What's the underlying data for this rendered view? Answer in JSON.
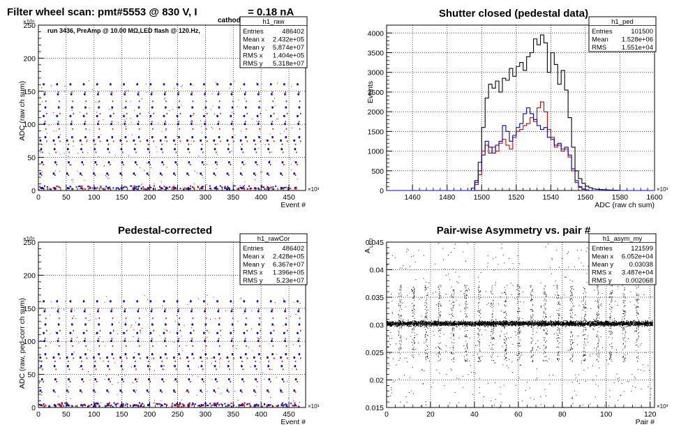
{
  "chart_data": [
    {
      "type": "scatter",
      "title": "Filter wheel scan: pmt#5553 @   830 V, I",
      "title_sub": "cathode",
      "title_suffix": "= 0.18 nA",
      "annotation": "run 3436, PreAmp @ 10.00 MΩ,LED flash @  120.Hz,",
      "xlabel": "Event #",
      "ylabel": "ADC (raw ch sum)",
      "x_exponent": "×10³",
      "y_exponent": "×10⁶",
      "xlim": [
        0,
        480
      ],
      "ylim": [
        0,
        250
      ],
      "xticks": [
        "0",
        "50",
        "100",
        "150",
        "200",
        "250",
        "300",
        "350",
        "400",
        "450"
      ],
      "yticks": [
        "0",
        "50",
        "100",
        "150",
        "200",
        "250"
      ],
      "stats": {
        "name": "h1_raw",
        "rows": [
          [
            "Entries",
            "486402"
          ],
          [
            "Mean x",
            "2.432e+05"
          ],
          [
            "Mean y",
            "5.874e+07"
          ],
          [
            "RMS x",
            "1.404e+05"
          ],
          [
            "RMS y",
            "5.318e+07"
          ]
        ]
      },
      "colors": {
        "series_a": "#0000cc",
        "series_b": "#cc0000"
      },
      "step_levels": [
        160,
        145,
        125,
        112,
        100,
        80,
        75,
        62,
        42,
        25,
        3
      ],
      "cycle_period": 24
    },
    {
      "type": "line",
      "title": "Shutter closed (pedestal data)",
      "xlabel": "ADC (raw ch sum)",
      "ylabel": "Events",
      "x_exponent": "×10³",
      "xlim": [
        1445,
        1600
      ],
      "ylim": [
        0,
        4200
      ],
      "xticks": [
        "1460",
        "1480",
        "1500",
        "1520",
        "1540",
        "1560",
        "1580",
        "1600"
      ],
      "yticks": [
        "0",
        "500",
        "1000",
        "1500",
        "2000",
        "2500",
        "3000",
        "3500",
        "4000"
      ],
      "stats": {
        "name": "h1_ped",
        "rows": [
          [
            "Entries",
            "101500"
          ],
          [
            "Mean",
            "1.528e+06"
          ],
          [
            "RMS",
            "1.551e+04"
          ]
        ]
      },
      "series": [
        {
          "color": "#000000",
          "x": [
            1494,
            1496,
            1498,
            1500,
            1502,
            1504,
            1506,
            1508,
            1510,
            1512,
            1514,
            1516,
            1518,
            1520,
            1522,
            1524,
            1526,
            1528,
            1530,
            1532,
            1534,
            1536,
            1538,
            1540,
            1542,
            1544,
            1546,
            1548,
            1550,
            1552,
            1554,
            1556,
            1558,
            1560,
            1562,
            1564,
            1566,
            1568,
            1570,
            1572,
            1574,
            1576,
            1578
          ],
          "y": [
            60,
            250,
            720,
            1600,
            2350,
            2700,
            2600,
            2780,
            2500,
            2850,
            2800,
            3100,
            2900,
            3150,
            3250,
            3050,
            3400,
            3500,
            3850,
            3700,
            3950,
            3750,
            3000,
            3500,
            3200,
            2700,
            3050,
            2550,
            1850,
            1100,
            500,
            300,
            180,
            110,
            70,
            40,
            30,
            25,
            20,
            15,
            10,
            8,
            5
          ]
        },
        {
          "color": "#cc0000",
          "x": [
            1496,
            1498,
            1500,
            1502,
            1504,
            1506,
            1508,
            1510,
            1512,
            1514,
            1516,
            1518,
            1520,
            1522,
            1524,
            1526,
            1528,
            1530,
            1532,
            1534,
            1536,
            1538,
            1540,
            1542,
            1544,
            1546,
            1548,
            1550,
            1552,
            1554,
            1556,
            1558,
            1560
          ],
          "y": [
            150,
            400,
            1000,
            1150,
            950,
            1100,
            1000,
            1200,
            1300,
            1150,
            1050,
            1350,
            1500,
            1550,
            1650,
            1700,
            1850,
            1750,
            2100,
            2250,
            2000,
            1550,
            1350,
            1100,
            1150,
            1000,
            1050,
            850,
            500,
            200,
            80,
            30,
            10
          ]
        },
        {
          "color": "#0000cc",
          "x": [
            1496,
            1498,
            1500,
            1502,
            1504,
            1506,
            1508,
            1510,
            1512,
            1514,
            1516,
            1518,
            1520,
            1522,
            1524,
            1526,
            1528,
            1530,
            1532,
            1534,
            1536,
            1538,
            1540,
            1542,
            1544,
            1546,
            1548,
            1550,
            1552,
            1554,
            1556,
            1558,
            1560
          ],
          "y": [
            200,
            500,
            900,
            1250,
            1100,
            950,
            1150,
            1250,
            1650,
            1500,
            1250,
            1400,
            1600,
            1700,
            1950,
            2100,
            1950,
            1800,
            1650,
            1550,
            1600,
            1350,
            1300,
            1150,
            1200,
            1050,
            1100,
            900,
            550,
            250,
            100,
            40,
            15
          ]
        }
      ]
    },
    {
      "type": "scatter",
      "title": "Pedestal-corrected",
      "xlabel": "Event #",
      "ylabel": "ADC (raw, ped-corr ch sum)",
      "x_exponent": "×10³",
      "y_exponent": "×10⁶",
      "xlim": [
        0,
        480
      ],
      "ylim": [
        0,
        250
      ],
      "xticks": [
        "0",
        "50",
        "100",
        "150",
        "200",
        "250",
        "300",
        "350",
        "400",
        "450"
      ],
      "yticks": [
        "0",
        "50",
        "100",
        "150",
        "200",
        "250"
      ],
      "stats": {
        "name": "h1_rawCor",
        "rows": [
          [
            "Entries",
            "486402"
          ],
          [
            "Mean x",
            "2.428e+05"
          ],
          [
            "Mean y",
            "6.367e+07"
          ],
          [
            "RMS x",
            "1.396e+05"
          ],
          [
            "RMS y",
            "5.23e+07"
          ]
        ]
      },
      "colors": {
        "series_a": "#0000cc",
        "series_b": "#cc0000"
      },
      "step_levels": [
        160,
        145,
        125,
        112,
        100,
        80,
        75,
        62,
        42,
        25,
        3
      ],
      "cycle_period": 24
    },
    {
      "type": "scatter",
      "title": "Pair-wise Asymmetry vs. pair #",
      "xlabel": "Pair #",
      "ylabel": "A",
      "ylabel_sub": "LED",
      "x_exponent": "×10³",
      "xlim": [
        0,
        122
      ],
      "ylim": [
        0.015,
        0.045
      ],
      "xticks": [
        "0",
        "20",
        "40",
        "60",
        "80",
        "100",
        "120"
      ],
      "yticks": [
        "0.015",
        "0.02",
        "0.025",
        "0.03",
        "0.035",
        "0.04",
        "0.045"
      ],
      "stats": {
        "name": "h1_asym_my",
        "rows": [
          [
            "Entries",
            "121599"
          ],
          [
            "Mean x",
            "6.052e+04"
          ],
          [
            "Mean y",
            "0.03038"
          ],
          [
            "RMS x",
            "3.487e+04"
          ],
          [
            "RMS y",
            "0.002068"
          ]
        ]
      },
      "center_value": 0.0303,
      "spike_positions": [
        6,
        12,
        18,
        24,
        30,
        36,
        42,
        48,
        54,
        60,
        66,
        72,
        78,
        84,
        90,
        96,
        102,
        108,
        114
      ]
    }
  ]
}
